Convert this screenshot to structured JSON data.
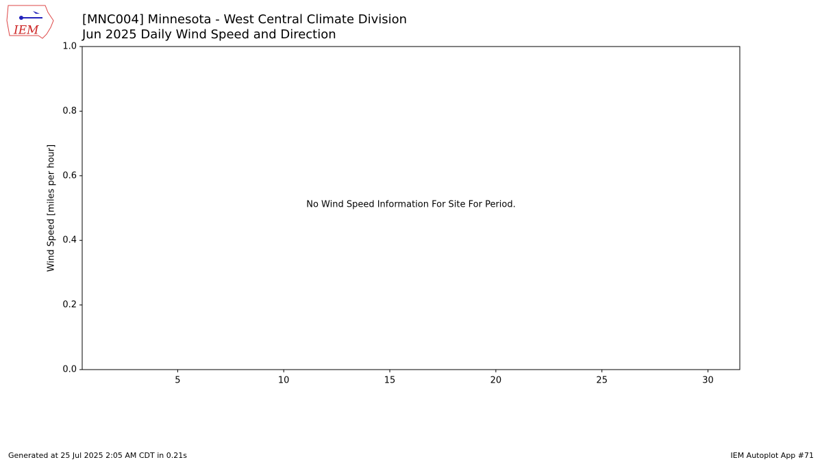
{
  "chart_data": {
    "type": "line",
    "title": "[MNC004] Minnesota - West Central Climate Division",
    "subtitle": "Jun 2025 Daily Wind Speed and Direction",
    "y_label": "Wind Speed [miles per hour]",
    "annotation": "No Wind Speed Information For Site For Period.",
    "series": [],
    "xlim": [
      0.5,
      31.5
    ],
    "xticks": [
      5,
      10,
      15,
      20,
      25,
      30
    ],
    "ylim": [
      0,
      1
    ],
    "yticks": [
      {
        "value": 0,
        "label": "0.0"
      },
      0.2,
      0.4,
      0.6,
      0.8,
      {
        "value": 1,
        "label": "1.0"
      }
    ],
    "grid": false
  },
  "logo": {
    "text": "IEM"
  },
  "footer": {
    "left": "Generated at 25 Jul 2025 2:05 AM CDT in 0.21s",
    "right": "IEM Autoplot App #71"
  }
}
